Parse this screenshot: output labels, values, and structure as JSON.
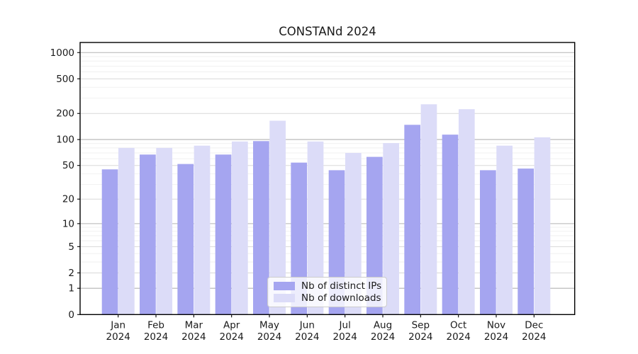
{
  "chart_data": {
    "type": "bar",
    "title": "CONSTANd 2024",
    "categories": [
      "Jan",
      "Feb",
      "Mar",
      "Apr",
      "May",
      "Jun",
      "Jul",
      "Aug",
      "Sep",
      "Oct",
      "Nov",
      "Dec"
    ],
    "x_tick_second_line": "2024",
    "series": [
      {
        "name": "Nb of distinct IPs",
        "color": "#a5a5f0",
        "values": [
          45,
          67,
          52,
          67,
          96,
          54,
          44,
          63,
          148,
          114,
          44,
          46
        ]
      },
      {
        "name": "Nb of downloads",
        "color": "#dcdcf8",
        "values": [
          80,
          80,
          85,
          95,
          165,
          95,
          70,
          91,
          255,
          224,
          85,
          106
        ]
      }
    ],
    "y_axis": {
      "scale": "log1p",
      "tick_values": [
        0,
        1,
        2,
        5,
        10,
        20,
        50,
        100,
        200,
        500,
        1000
      ],
      "tick_labels": [
        "0",
        "1",
        "2",
        "5",
        "10",
        "20",
        "50",
        "100",
        "200",
        "500",
        "1000"
      ],
      "range": [
        0,
        1310
      ]
    },
    "grid": {
      "major_values": [
        1,
        10,
        100,
        1000
      ],
      "medium_values": [
        2,
        5,
        20,
        50,
        200,
        500
      ],
      "minor_values": [
        3,
        4,
        6,
        7,
        8,
        9,
        30,
        40,
        60,
        70,
        80,
        90,
        300,
        400,
        600,
        700,
        800,
        900
      ],
      "major_color": "#b3b3b3",
      "medium_color": "#d9d9d9",
      "minor_color": "#ededed"
    },
    "legend": {
      "position": "lower center"
    },
    "colors": {
      "spine": "#000000",
      "text": "#1a1a1a",
      "background": "#ffffff"
    }
  }
}
